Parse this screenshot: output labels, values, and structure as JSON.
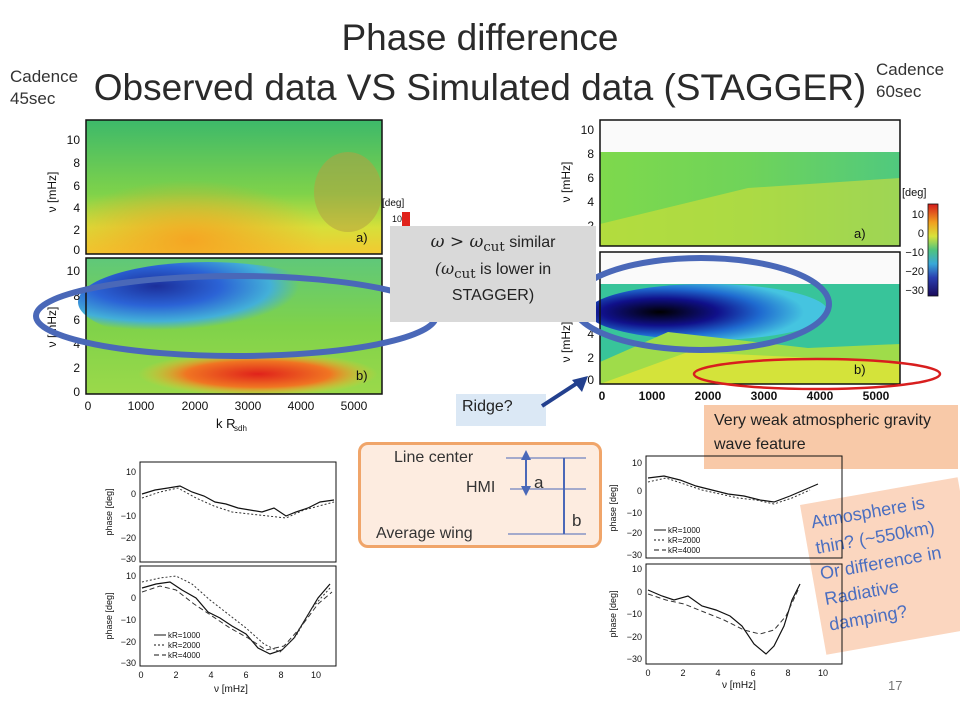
{
  "slide": {
    "title_line1": "Phase difference",
    "title_line2": "Observed data VS Simulated data (STAGGER)",
    "cadence_left": [
      "Cadence",
      "45sec"
    ],
    "cadence_right": [
      "Cadence",
      "60sec"
    ],
    "page_number": "17"
  },
  "callouts": {
    "omega_line": "ω > ω",
    "omega_sub": "cut",
    "omega_similar": " similar",
    "lower_line_a": "(ω",
    "lower_line_sub": "cut",
    "lower_line_b": " is lower in",
    "lower_line_c": "STAGGER)",
    "ridge": "Ridge?",
    "gravity": "Very weak atmospheric gravity wave feature",
    "atmosphere": [
      "Atmosphere is",
      "thin? (~550km)",
      "Or difference in",
      "Radiative",
      "damping?"
    ]
  },
  "heights_diagram": {
    "line_center": "Line center",
    "hmi": "HMI",
    "average_wing": "Average wing",
    "a": "a",
    "b": "b"
  },
  "left_map": {
    "y_ticks": [
      "10",
      "8",
      "6",
      "4",
      "2",
      "0"
    ],
    "y_label": "ν [mHz]",
    "x_ticks": [
      "0",
      "1000",
      "2000",
      "3000",
      "4000",
      "5000"
    ],
    "x_label": "k R",
    "x_label_sub": "sdh",
    "panel_a": "a)",
    "panel_b": "b)",
    "colorbar_label": "[deg]",
    "colorbar_tick": "10"
  },
  "right_map": {
    "y_ticks": [
      "10",
      "8",
      "6",
      "4",
      "2",
      "0"
    ],
    "y_label": "ν [mHz]",
    "x_ticks": [
      "0",
      "1000",
      "2000",
      "3000",
      "4000",
      "5000"
    ],
    "panel_a": "a)",
    "panel_b": "b)",
    "colorbar_label": "[deg]",
    "colorbar_ticks": [
      "10",
      "0",
      "−10",
      "−20",
      "−30"
    ]
  },
  "left_plots": {
    "y_ticks": [
      "10",
      "0",
      "−10",
      "−20",
      "−30"
    ],
    "y_label": "phase [deg]",
    "x_ticks": [
      "0",
      "2",
      "4",
      "6",
      "8",
      "10"
    ],
    "x_label": "ν [mHz]",
    "legend": [
      "kR=1000",
      "kR=2000",
      "kR=4000"
    ]
  },
  "right_plots": {
    "y_ticks": [
      "10",
      "0",
      "−10",
      "−20",
      "−30"
    ],
    "y_label": "phase [deg]",
    "x_ticks": [
      "0",
      "2",
      "4",
      "6",
      "8",
      "10"
    ],
    "x_label": "ν [mHz]",
    "legend": [
      "kR=1000",
      "kR=2000",
      "kR=4000"
    ]
  }
}
